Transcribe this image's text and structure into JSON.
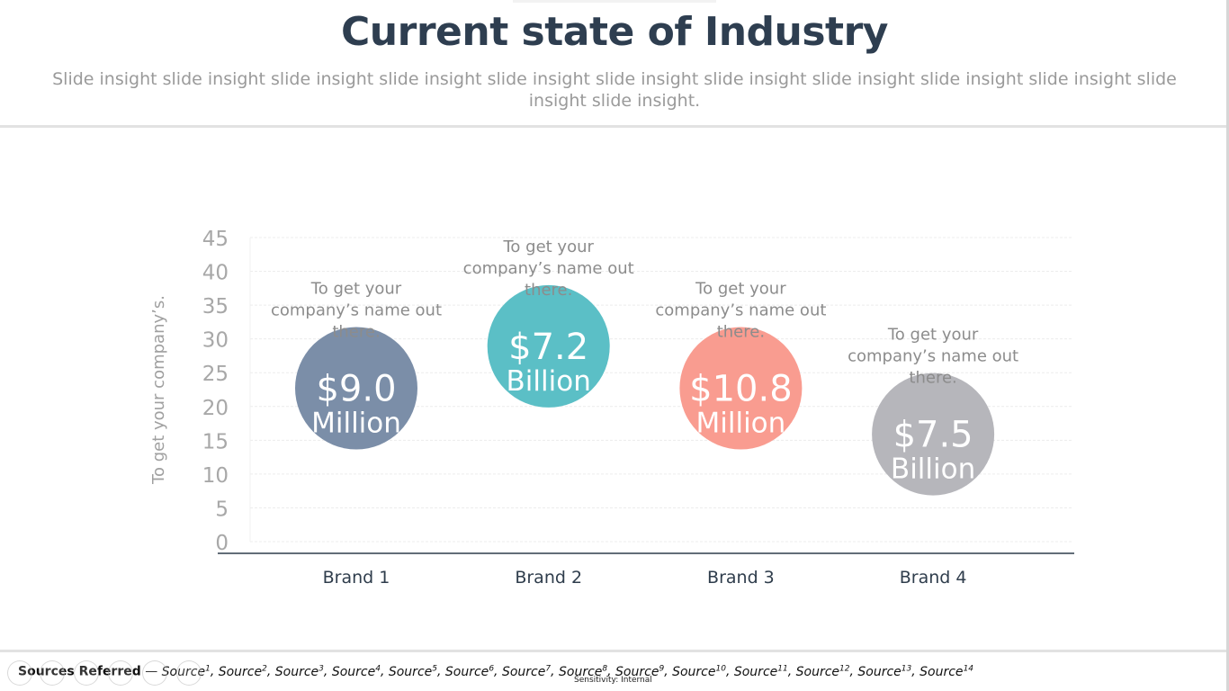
{
  "slide": {
    "title": "Current state of Industry",
    "subtitle": "Slide insight slide insight slide insight slide insight slide insight slide insight slide insight slide insight slide insight slide insight slide insight slide insight."
  },
  "chart_data": {
    "type": "scatter",
    "ylabel": "To get your company’s.",
    "ylim": [
      0,
      45
    ],
    "yticks": [
      0,
      5,
      10,
      15,
      20,
      25,
      30,
      35,
      40,
      45
    ],
    "grid": true,
    "categories": [
      "Brand 1",
      "Brand 2",
      "Brand 3",
      "Brand 4"
    ],
    "points": [
      {
        "category": "Brand 1",
        "y": 22.7,
        "value": "$9.0",
        "unit": "Million",
        "annotation": "To get your company’s name out there.",
        "color": "#7b8ea8"
      },
      {
        "category": "Brand 2",
        "y": 28.9,
        "value": "$7.2",
        "unit": "Billion",
        "annotation": "To get your company’s name out there.",
        "color": "#5bbfc6"
      },
      {
        "category": "Brand 3",
        "y": 22.7,
        "value": "$10.8",
        "unit": "Million",
        "annotation": "To get your company’s name out there.",
        "color": "#f99c90"
      },
      {
        "category": "Brand 4",
        "y": 15.9,
        "value": "$7.5",
        "unit": "Billion",
        "annotation": "To get your company’s name out there.",
        "color": "#b6b6bb"
      }
    ]
  },
  "footer": {
    "sources_label": "Sources Referred",
    "sources_sep": " — ",
    "sources": [
      {
        "name": "Source",
        "sup": "1"
      },
      {
        "name": "Source",
        "sup": "2"
      },
      {
        "name": "Source",
        "sup": "3"
      },
      {
        "name": "Source",
        "sup": "4"
      },
      {
        "name": "Source",
        "sup": "5"
      },
      {
        "name": "Source",
        "sup": "6"
      },
      {
        "name": "Source",
        "sup": "7"
      },
      {
        "name": "Source",
        "sup": "8"
      },
      {
        "name": "Source",
        "sup": "9"
      },
      {
        "name": "Source",
        "sup": "10"
      },
      {
        "name": "Source",
        "sup": "11"
      },
      {
        "name": "Source",
        "sup": "12"
      },
      {
        "name": "Source",
        "sup": "13"
      },
      {
        "name": "Source",
        "sup": "14"
      }
    ],
    "sensitivity": "Sensitivity: Internal"
  },
  "colors": {
    "title": "#2e3e50",
    "subtitle": "#9a9a9a",
    "axis": "#2f3d4c",
    "tick": "#a8a8a8",
    "annotation": "#8c8c8c"
  }
}
